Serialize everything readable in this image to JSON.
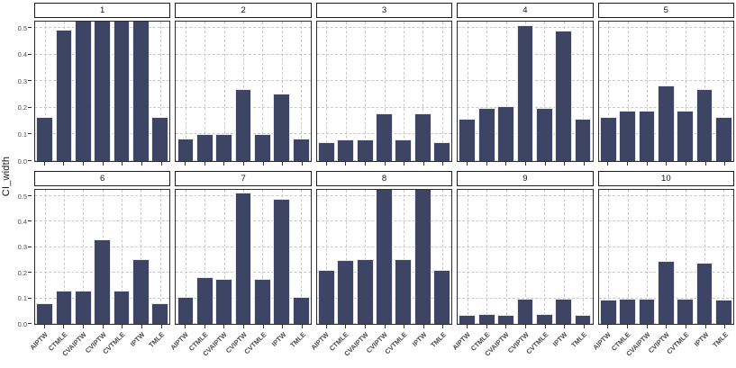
{
  "chart_data": {
    "type": "bar",
    "title": "",
    "xlabel": "",
    "ylabel": "CI_width",
    "categories": [
      "AIPTW",
      "CTMLE",
      "CVAIPTW",
      "CVIPTW",
      "CVTMLE",
      "IPTW",
      "TMLE"
    ],
    "ytick_labels": [
      "0.0",
      "0.1",
      "0.2",
      "0.3",
      "0.4",
      "0.5"
    ],
    "yticks": [
      0.0,
      0.1,
      0.2,
      0.3,
      0.4,
      0.5
    ],
    "ylim": [
      0,
      0.525
    ],
    "grid": "major-dashed",
    "legend": "none",
    "facet_layout": {
      "rows": 2,
      "cols": 5
    },
    "facets": [
      {
        "label": "1",
        "values": [
          0.165,
          0.495,
          0.53,
          0.53,
          0.53,
          0.53,
          0.165
        ],
        "clipped": [
          false,
          false,
          true,
          true,
          true,
          true,
          false
        ]
      },
      {
        "label": "2",
        "values": [
          0.085,
          0.1,
          0.1,
          0.27,
          0.1,
          0.255,
          0.085
        ],
        "clipped": [
          false,
          false,
          false,
          false,
          false,
          false,
          false
        ]
      },
      {
        "label": "3",
        "values": [
          0.07,
          0.08,
          0.08,
          0.18,
          0.08,
          0.18,
          0.07
        ],
        "clipped": [
          false,
          false,
          false,
          false,
          false,
          false,
          false
        ]
      },
      {
        "label": "4",
        "values": [
          0.16,
          0.2,
          0.205,
          0.51,
          0.2,
          0.49,
          0.16
        ],
        "clipped": [
          false,
          false,
          false,
          false,
          false,
          false,
          false
        ]
      },
      {
        "label": "5",
        "values": [
          0.165,
          0.19,
          0.19,
          0.285,
          0.19,
          0.27,
          0.165
        ],
        "clipped": [
          false,
          false,
          false,
          false,
          false,
          false,
          false
        ]
      },
      {
        "label": "6",
        "values": [
          0.08,
          0.13,
          0.13,
          0.33,
          0.13,
          0.255,
          0.08
        ],
        "clipped": [
          false,
          false,
          false,
          false,
          false,
          false,
          false
        ]
      },
      {
        "label": "7",
        "values": [
          0.105,
          0.185,
          0.175,
          0.515,
          0.175,
          0.49,
          0.105
        ],
        "clipped": [
          false,
          false,
          false,
          false,
          false,
          false,
          false
        ]
      },
      {
        "label": "8",
        "values": [
          0.21,
          0.25,
          0.255,
          0.53,
          0.255,
          0.53,
          0.21
        ],
        "clipped": [
          false,
          false,
          false,
          true,
          false,
          true,
          false
        ]
      },
      {
        "label": "9",
        "values": [
          0.035,
          0.04,
          0.035,
          0.1,
          0.04,
          0.1,
          0.035
        ],
        "clipped": [
          false,
          false,
          false,
          false,
          false,
          false,
          false
        ]
      },
      {
        "label": "10",
        "values": [
          0.095,
          0.1,
          0.1,
          0.245,
          0.1,
          0.24,
          0.095
        ],
        "clipped": [
          false,
          false,
          false,
          false,
          false,
          false,
          false
        ]
      }
    ],
    "colors": {
      "bar_fill": "#3e4463",
      "bar_outline": "#e9e9f0",
      "panel_border": "#2e2e2e",
      "strip_border": "#1c1c1c",
      "strip_fill": "#ffffff",
      "gridline": "#c9c9c9",
      "axis_text": "#4d4d4d",
      "background": "#ffffff"
    }
  }
}
